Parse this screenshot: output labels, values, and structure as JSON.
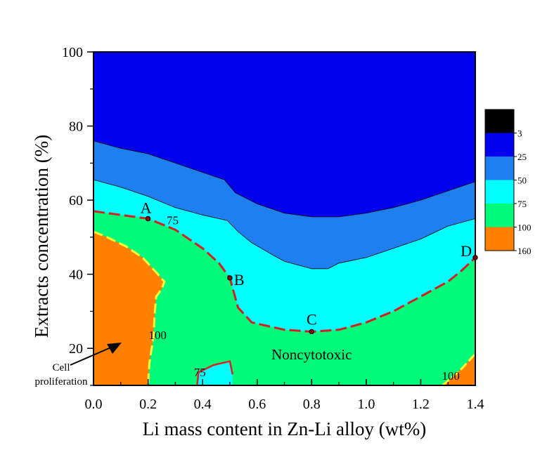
{
  "chart_data": {
    "type": "contour",
    "xlabel": "Li mass content in Zn-Li alloy (wt%)",
    "ylabel": "Extracts concentration (%)",
    "xlim": [
      0.0,
      1.4
    ],
    "ylim": [
      10,
      100
    ],
    "x_ticks": [
      "0.0",
      "0.2",
      "0.4",
      "0.6",
      "0.8",
      "1.0",
      "1.2",
      "1.4"
    ],
    "y_ticks": [
      "20",
      "40",
      "60",
      "80",
      "100"
    ],
    "levels": [
      {
        "label": "3",
        "color": "#000000"
      },
      {
        "label": "25",
        "color": "#0000ee"
      },
      {
        "label": "50",
        "color": "#1e7ff0"
      },
      {
        "label": "75",
        "color": "#00ffff"
      },
      {
        "label": "100",
        "color": "#00fa7a"
      },
      {
        "label": "160",
        "color": "#ff7f00"
      }
    ],
    "contour_labels": [
      {
        "text": "75",
        "x": 0.29,
        "y": 53.5
      },
      {
        "text": "100",
        "x": 0.235,
        "y": 22.5
      },
      {
        "text": "75",
        "x": 0.39,
        "y": 12.5
      },
      {
        "text": "100",
        "x": 1.31,
        "y": 11.5
      }
    ],
    "points": [
      {
        "label": "A",
        "x": 0.2,
        "y": 55
      },
      {
        "label": "B",
        "x": 0.5,
        "y": 39
      },
      {
        "label": "C",
        "x": 0.8,
        "y": 24.5
      },
      {
        "label": "D",
        "x": 1.4,
        "y": 44.5
      }
    ],
    "region_label": "Noncytotoxic",
    "annotation": {
      "line1": "Cell",
      "line2": "proliferation"
    },
    "boundary_75": [
      [
        0,
        57
      ],
      [
        0.1,
        56
      ],
      [
        0.2,
        55
      ],
      [
        0.3,
        52
      ],
      [
        0.4,
        47
      ],
      [
        0.46,
        43
      ],
      [
        0.5,
        39
      ],
      [
        0.53,
        31
      ],
      [
        0.58,
        27
      ],
      [
        0.7,
        25
      ],
      [
        0.8,
        24.5
      ],
      [
        0.9,
        25
      ],
      [
        1.0,
        27
      ],
      [
        1.1,
        30
      ],
      [
        1.2,
        34
      ],
      [
        1.3,
        38
      ],
      [
        1.35,
        41
      ],
      [
        1.4,
        44.5
      ]
    ],
    "boundary_100_left": [
      [
        0,
        51.5
      ],
      [
        0.05,
        50
      ],
      [
        0.12,
        47.5
      ],
      [
        0.18,
        44.5
      ],
      [
        0.23,
        40.5
      ],
      [
        0.26,
        38
      ],
      [
        0.25,
        36
      ],
      [
        0.23,
        34
      ],
      [
        0.225,
        30
      ],
      [
        0.22,
        23
      ],
      [
        0.205,
        16
      ],
      [
        0.2,
        10
      ]
    ],
    "contour_25": [
      [
        0,
        76
      ],
      [
        0.1,
        74
      ],
      [
        0.2,
        72.5
      ],
      [
        0.3,
        70
      ],
      [
        0.4,
        67.5
      ],
      [
        0.48,
        65.5
      ],
      [
        0.52,
        62
      ],
      [
        0.6,
        59
      ],
      [
        0.7,
        56.5
      ],
      [
        0.8,
        55.5
      ],
      [
        0.9,
        55.5
      ],
      [
        1.0,
        56.5
      ],
      [
        1.1,
        58
      ],
      [
        1.2,
        60
      ],
      [
        1.3,
        62.5
      ],
      [
        1.4,
        65
      ]
    ],
    "contour_50": [
      [
        0,
        65.5
      ],
      [
        0.1,
        63.5
      ],
      [
        0.2,
        61
      ],
      [
        0.3,
        58
      ],
      [
        0.4,
        56
      ],
      [
        0.49,
        54.5
      ],
      [
        0.53,
        51.5
      ],
      [
        0.58,
        48.5
      ],
      [
        0.65,
        45.5
      ],
      [
        0.7,
        43.5
      ],
      [
        0.8,
        41.5
      ],
      [
        0.86,
        41.5
      ],
      [
        0.9,
        43
      ],
      [
        1.0,
        44.5
      ],
      [
        1.1,
        47
      ],
      [
        1.2,
        49.5
      ],
      [
        1.3,
        53
      ],
      [
        1.4,
        55
      ]
    ],
    "island_75": [
      [
        0.38,
        10
      ],
      [
        0.385,
        13.5
      ],
      [
        0.44,
        15.5
      ],
      [
        0.5,
        16.5
      ],
      [
        0.51,
        13
      ],
      [
        0.51,
        10
      ]
    ],
    "corner_orange": [
      [
        1.28,
        10
      ],
      [
        1.35,
        14.5
      ],
      [
        1.4,
        18.5
      ],
      [
        1.4,
        10
      ]
    ]
  }
}
